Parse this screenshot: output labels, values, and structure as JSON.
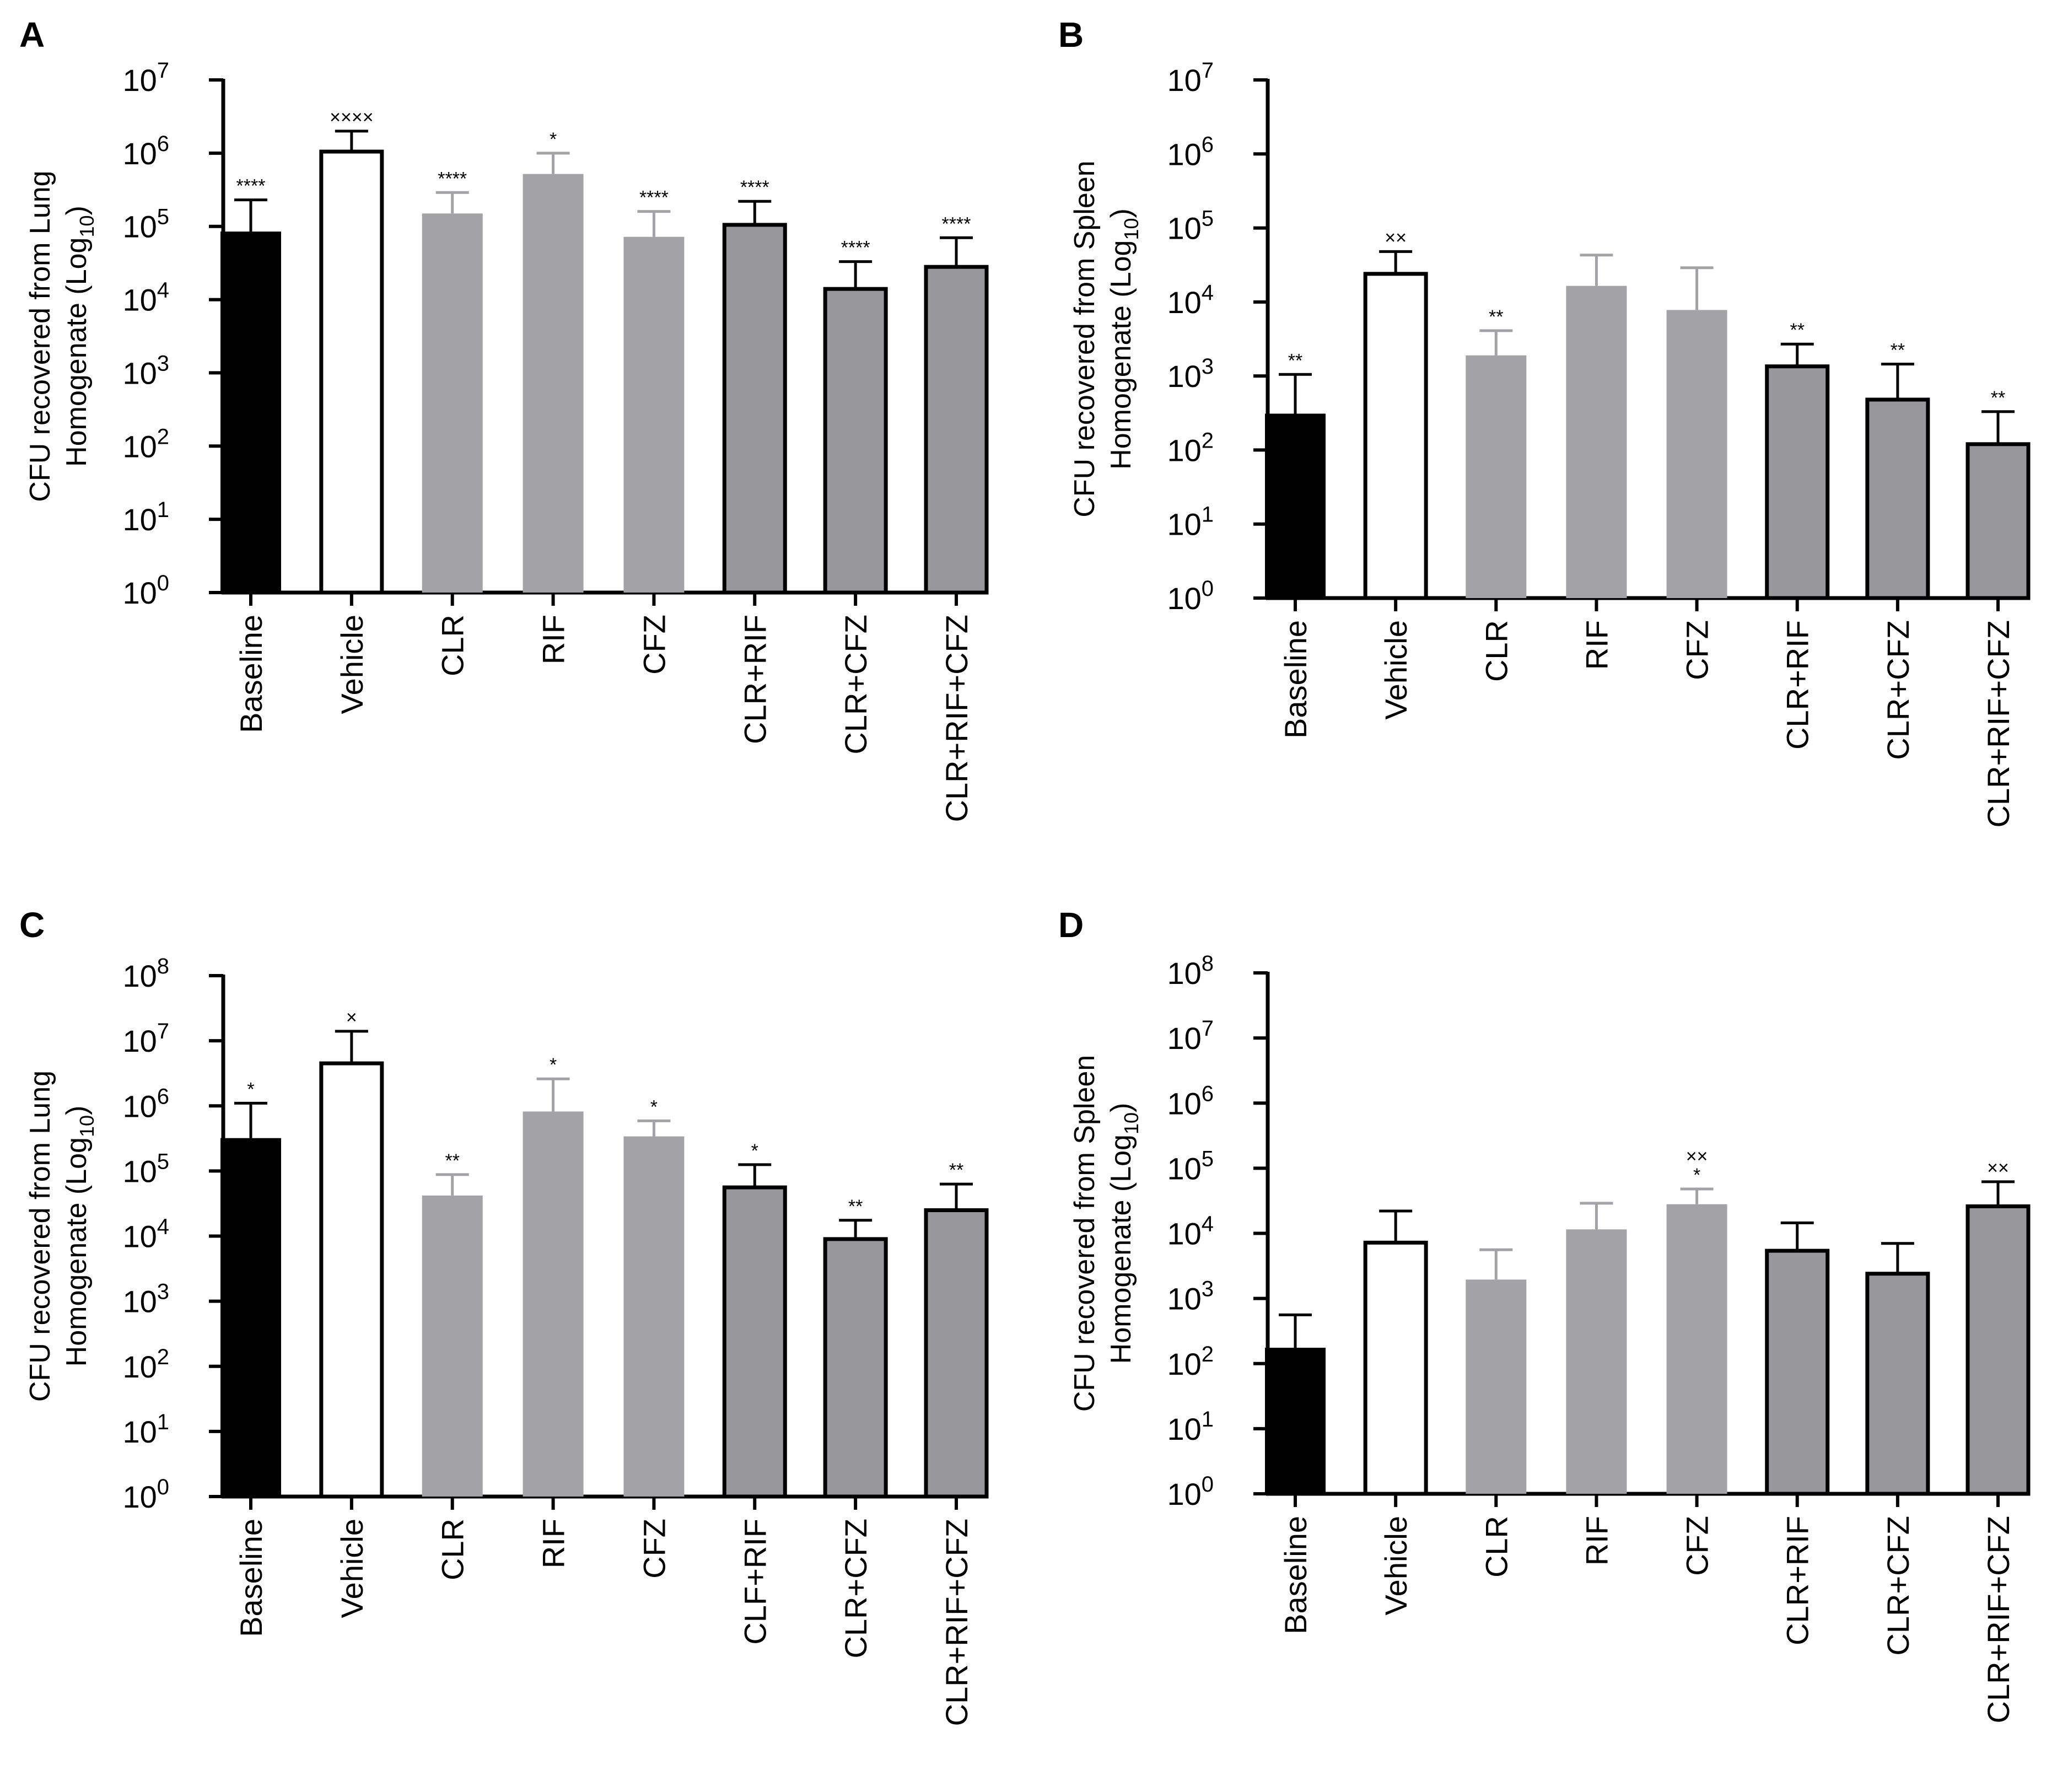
{
  "figure": {
    "background": "#ffffff"
  },
  "styles": {
    "fills": {
      "black": "#000000",
      "white": "#ffffff",
      "gray": "#a3a3a7",
      "darkgray": "#98989c"
    },
    "light_error": "#a3a3a7"
  },
  "chart_data": [
    {
      "id": "A",
      "panel_label": "A",
      "type": "bar",
      "ylabel": "CFU recovered from Lung Homogenate (Log₁₀)",
      "ylabel_lines": [
        "CFU recovered from Lung",
        "Homogenate (Log"
      ],
      "ylabel_sub": "10",
      "yscale": "log",
      "ylim_exp": [
        0,
        7
      ],
      "ytick_base": "10",
      "ytick_exponents": [
        "0",
        "1",
        "2",
        "3",
        "4",
        "5",
        "6",
        "7"
      ],
      "categories": [
        "Baseline",
        "Vehicle",
        "CLR",
        "RIF",
        "CFZ",
        "CLR+RIF",
        "CLR+CFZ",
        "CLR+RIF+CFZ"
      ],
      "values": [
        85000,
        1050000,
        150000,
        520000,
        72000,
        105000,
        14000,
        28000
      ],
      "errors_upper": [
        230000,
        2000000,
        290000,
        1000000,
        160000,
        220000,
        33000,
        70000
      ],
      "styles": [
        "black",
        "white",
        "gray",
        "gray",
        "gray",
        "darkgray",
        "darkgray",
        "darkgray"
      ],
      "annotations": [
        "****",
        "××××",
        "****",
        "*",
        "****",
        "****",
        "****",
        "****"
      ]
    },
    {
      "id": "B",
      "panel_label": "B",
      "type": "bar",
      "ylabel": "CFU recovered from Spleen Homogenate (Log₁₀)",
      "ylabel_lines": [
        "CFU recovered from Spleen",
        "Homogenate (Log"
      ],
      "ylabel_sub": "10",
      "yscale": "log",
      "ylim_exp": [
        0,
        7
      ],
      "ytick_base": "10",
      "ytick_exponents": [
        "0",
        "1",
        "2",
        "3",
        "4",
        "5",
        "6",
        "7"
      ],
      "categories": [
        "Baseline",
        "Vehicle",
        "CLR",
        "RIF",
        "CFZ",
        "CLR+RIF",
        "CLR+CFZ",
        "CLR+RIF+CFZ"
      ],
      "values": [
        310,
        24000,
        1900,
        16500,
        7800,
        1350,
        480,
        120
      ],
      "errors_upper": [
        1050,
        48000,
        4100,
        43000,
        29000,
        2700,
        1450,
        330
      ],
      "styles": [
        "black",
        "white",
        "gray",
        "gray",
        "gray",
        "darkgray",
        "darkgray",
        "darkgray"
      ],
      "annotations": [
        "**",
        "××",
        "**",
        "",
        "",
        "**",
        "**",
        "**"
      ]
    },
    {
      "id": "C",
      "panel_label": "C",
      "type": "bar",
      "ylabel": "CFU recovered from Lung Homogenate (Log₁₀)",
      "ylabel_lines": [
        "CFU recovered from Lung",
        "Homogenate (Log"
      ],
      "ylabel_sub": "10",
      "yscale": "log",
      "ylim_exp": [
        0,
        8
      ],
      "ytick_base": "10",
      "ytick_exponents": [
        "0",
        "1",
        "2",
        "3",
        "4",
        "5",
        "6",
        "7",
        "8"
      ],
      "categories": [
        "Baseline",
        "Vehicle",
        "CLR",
        "RIF",
        "CFZ",
        "CLF+RIF",
        "CLR+CFZ",
        "CLR+RIF+CFZ"
      ],
      "values": [
        320000,
        4500000,
        42000,
        820000,
        340000,
        56000,
        9000,
        25000
      ],
      "errors_upper": [
        1100000,
        14000000,
        88000,
        2600000,
        590000,
        125000,
        17500,
        63000
      ],
      "styles": [
        "black",
        "white",
        "gray",
        "gray",
        "gray",
        "darkgray",
        "darkgray",
        "darkgray"
      ],
      "annotations": [
        "*",
        "×",
        "**",
        "*",
        "*",
        "*",
        "**",
        "**"
      ]
    },
    {
      "id": "D",
      "panel_label": "D",
      "type": "bar",
      "ylabel": "CFU recovered from Spleen Homogenate (Log₁₀)",
      "ylabel_lines": [
        "CFU recovered from Spleen",
        "Homogenate (Log"
      ],
      "ylabel_sub": "10",
      "yscale": "log",
      "ylim_exp": [
        0,
        8
      ],
      "ytick_base": "10",
      "ytick_exponents": [
        "0",
        "1",
        "2",
        "3",
        "4",
        "5",
        "6",
        "7",
        "8"
      ],
      "categories": [
        "Baseline",
        "Vehicle",
        "CLR",
        "RIF",
        "CFZ",
        "CLR+RIF",
        "CLR+CFZ",
        "CLR+RIF+CFZ"
      ],
      "values": [
        175,
        7200,
        1950,
        11500,
        28000,
        5400,
        2400,
        26000
      ],
      "errors_upper": [
        560,
        22000,
        5600,
        29000,
        48000,
        14500,
        7000,
        62000
      ],
      "styles": [
        "black",
        "white",
        "gray",
        "gray",
        "gray",
        "darkgray",
        "darkgray",
        "darkgray"
      ],
      "annotations": [
        "",
        "",
        "",
        "",
        "××\n*",
        "",
        "",
        "××"
      ]
    }
  ]
}
